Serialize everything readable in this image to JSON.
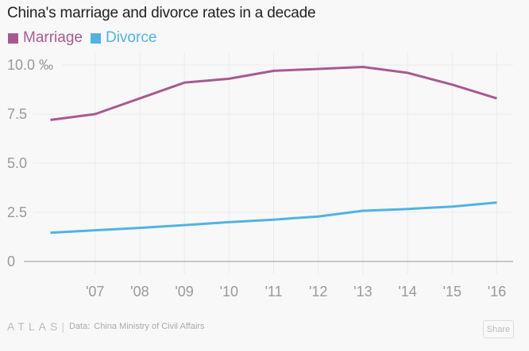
{
  "header": {
    "title": "China's marriage and divorce rates in a decade"
  },
  "footer": {
    "logo": "ATLAS",
    "separator": "|",
    "source_label": "Data:",
    "source": "China Ministry of Civil Affairs",
    "share_label": "Share"
  },
  "chart_data": {
    "type": "line",
    "title": "China's marriage and divorce rates in a decade",
    "xlabel": "",
    "ylabel": "‰",
    "x": [
      2006,
      2007,
      2008,
      2009,
      2010,
      2011,
      2012,
      2013,
      2014,
      2015,
      2016
    ],
    "x_tick_values": [
      2007,
      2008,
      2009,
      2010,
      2011,
      2012,
      2013,
      2014,
      2015,
      2016
    ],
    "x_tick_labels": [
      "'07",
      "'08",
      "'09",
      "'10",
      "'11",
      "'12",
      "'13",
      "'14",
      "'15",
      "'16"
    ],
    "y_tick_values": [
      0,
      2.5,
      5.0,
      7.5,
      10.0
    ],
    "y_tick_labels": [
      "0",
      "2.5",
      "5.0",
      "7.5",
      "10.0 ‰"
    ],
    "ylim": [
      0,
      10
    ],
    "grid": true,
    "legend_position": "top-left",
    "series": [
      {
        "name": "Marriage",
        "color": "#a85a90",
        "values": [
          7.2,
          7.5,
          8.3,
          9.1,
          9.3,
          9.7,
          9.8,
          9.9,
          9.6,
          9.0,
          8.3
        ]
      },
      {
        "name": "Divorce",
        "color": "#51b2e5",
        "values": [
          1.46,
          1.59,
          1.71,
          1.85,
          2.0,
          2.13,
          2.29,
          2.58,
          2.67,
          2.79,
          3.0
        ]
      }
    ]
  }
}
